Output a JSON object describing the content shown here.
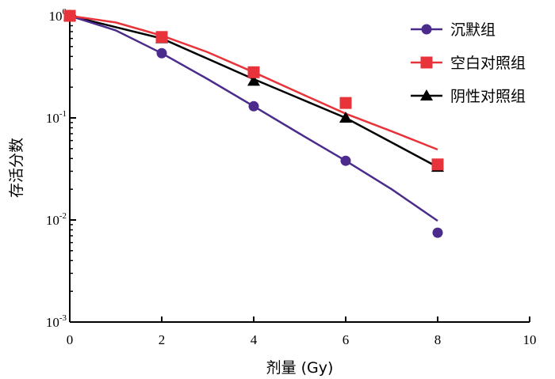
{
  "chart_data": {
    "type": "line",
    "xlabel": "剂量 (Gy)",
    "ylabel": "存活分数",
    "xlim": [
      0,
      10
    ],
    "ylim": [
      0.001,
      1
    ],
    "yscale": "log",
    "xticks": [
      0,
      2,
      4,
      6,
      8,
      10
    ],
    "yticks": [
      {
        "value": 1,
        "base": "10",
        "exp": "0"
      },
      {
        "value": 0.1,
        "base": "10",
        "exp": "-1"
      },
      {
        "value": 0.01,
        "base": "10",
        "exp": "-2"
      },
      {
        "value": 0.001,
        "base": "10",
        "exp": "-3"
      }
    ],
    "grid": false,
    "legend_position": "top-right",
    "series": [
      {
        "name": "沉默组",
        "color": "#4B2C8C",
        "marker": "circle",
        "points": [
          {
            "x": 0,
            "y": 1.0
          },
          {
            "x": 2,
            "y": 0.43
          },
          {
            "x": 4,
            "y": 0.13
          },
          {
            "x": 6,
            "y": 0.038
          },
          {
            "x": 8,
            "y": 0.0075
          }
        ],
        "fit": [
          {
            "x": 0,
            "y": 1.0
          },
          {
            "x": 1,
            "y": 0.72
          },
          {
            "x": 2,
            "y": 0.43
          },
          {
            "x": 3,
            "y": 0.24
          },
          {
            "x": 4,
            "y": 0.13
          },
          {
            "x": 5,
            "y": 0.07
          },
          {
            "x": 6,
            "y": 0.038
          },
          {
            "x": 7,
            "y": 0.02
          },
          {
            "x": 8,
            "y": 0.0098
          }
        ]
      },
      {
        "name": "空白对照组",
        "color": "#E8333A",
        "marker": "square",
        "points": [
          {
            "x": 0,
            "y": 1.0
          },
          {
            "x": 2,
            "y": 0.62
          },
          {
            "x": 4,
            "y": 0.28
          },
          {
            "x": 6,
            "y": 0.14
          },
          {
            "x": 8,
            "y": 0.035
          }
        ],
        "fit": [
          {
            "x": 0,
            "y": 1.0
          },
          {
            "x": 1,
            "y": 0.86
          },
          {
            "x": 2,
            "y": 0.64
          },
          {
            "x": 3,
            "y": 0.44
          },
          {
            "x": 4,
            "y": 0.28
          },
          {
            "x": 5,
            "y": 0.175
          },
          {
            "x": 6,
            "y": 0.11
          },
          {
            "x": 7,
            "y": 0.074
          },
          {
            "x": 8,
            "y": 0.049
          }
        ]
      },
      {
        "name": "阴性对照组",
        "color": "#000000",
        "marker": "triangle",
        "points": [
          {
            "x": 0,
            "y": 1.0
          },
          {
            "x": 2,
            "y": 0.6
          },
          {
            "x": 4,
            "y": 0.23
          },
          {
            "x": 6,
            "y": 0.1
          },
          {
            "x": 8,
            "y": 0.033
          }
        ],
        "fit": [
          {
            "x": 0,
            "y": 1.0
          },
          {
            "x": 2,
            "y": 0.6
          },
          {
            "x": 4,
            "y": 0.24
          },
          {
            "x": 6,
            "y": 0.1
          },
          {
            "x": 8,
            "y": 0.033
          }
        ]
      }
    ]
  }
}
